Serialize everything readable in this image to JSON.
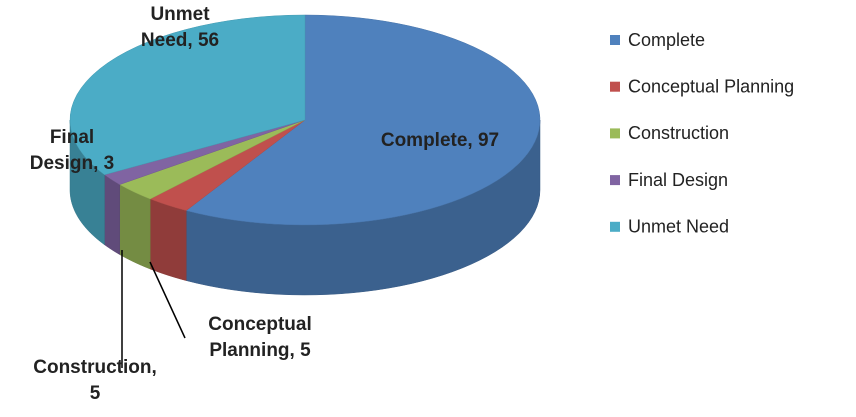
{
  "chart_data": {
    "type": "pie3d",
    "categories": [
      "Complete",
      "Conceptual Planning",
      "Construction",
      "Final Design",
      "Unmet Need"
    ],
    "values": [
      97,
      5,
      5,
      3,
      56
    ],
    "value_labels": [
      "Complete, 97",
      "Conceptual Planning, 5",
      "Construction, 5",
      "Final Design, 3",
      "Unmet Need, 56"
    ],
    "colors": [
      "#4f81bd",
      "#c0504d",
      "#9bbb59",
      "#8064a2",
      "#4bacc6"
    ],
    "legend": "right"
  }
}
